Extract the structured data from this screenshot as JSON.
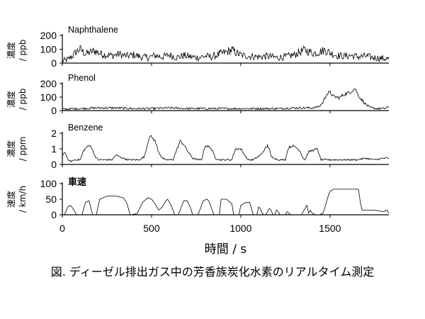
{
  "chart_data": {
    "type": "line",
    "caption": "図. ディーゼル排出ガス中の芳香族炭化水素のリアルタイム測定",
    "xlabel": "時間 / s",
    "xlim": [
      0,
      1830
    ],
    "xticks": [
      0,
      500,
      1000,
      1500
    ],
    "panels": [
      {
        "title": "Naphthalene",
        "ylabel_main": "濃度",
        "ylabel_unit": "/ ppb",
        "ylim": [
          0,
          200
        ],
        "yticks": [
          0,
          100,
          200
        ],
        "x": [
          0,
          30,
          60,
          80,
          100,
          130,
          150,
          180,
          210,
          240,
          280,
          320,
          360,
          400,
          440,
          480,
          520,
          560,
          600,
          640,
          680,
          720,
          760,
          800,
          840,
          880,
          920,
          950,
          980,
          1010,
          1050,
          1100,
          1150,
          1200,
          1250,
          1300,
          1340,
          1360,
          1380,
          1410,
          1440,
          1470,
          1500,
          1540,
          1580,
          1620,
          1660,
          1700,
          1740,
          1780,
          1830
        ],
        "y": [
          15,
          25,
          55,
          85,
          100,
          65,
          75,
          90,
          70,
          60,
          55,
          65,
          50,
          60,
          45,
          40,
          55,
          45,
          60,
          40,
          55,
          45,
          40,
          50,
          45,
          65,
          80,
          95,
          70,
          55,
          50,
          45,
          50,
          40,
          45,
          60,
          85,
          95,
          85,
          70,
          80,
          95,
          75,
          55,
          50,
          55,
          45,
          50,
          40,
          35,
          30
        ]
      },
      {
        "title": "Phenol",
        "ylabel_main": "濃度",
        "ylabel_unit": "/ ppb",
        "ylim": [
          0,
          200
        ],
        "yticks": [
          0,
          100,
          200
        ],
        "x": [
          0,
          100,
          200,
          300,
          400,
          500,
          600,
          700,
          800,
          900,
          1000,
          1100,
          1200,
          1300,
          1400,
          1440,
          1460,
          1480,
          1500,
          1520,
          1550,
          1580,
          1610,
          1640,
          1660,
          1690,
          1720,
          1760,
          1800,
          1830
        ],
        "y": [
          10,
          15,
          20,
          20,
          15,
          15,
          20,
          15,
          15,
          15,
          15,
          15,
          15,
          20,
          20,
          30,
          60,
          120,
          135,
          105,
          95,
          120,
          135,
          165,
          110,
          60,
          25,
          15,
          15,
          25
        ]
      },
      {
        "title": "Benzene",
        "ylabel_main": "濃度",
        "ylabel_unit": "/ ppm",
        "ylim": [
          0,
          2
        ],
        "yticks": [
          0,
          1,
          2
        ],
        "x": [
          0,
          15,
          30,
          50,
          70,
          100,
          120,
          140,
          160,
          170,
          185,
          200,
          240,
          280,
          300,
          340,
          370,
          400,
          430,
          460,
          475,
          490,
          505,
          520,
          540,
          560,
          580,
          620,
          640,
          660,
          680,
          700,
          730,
          760,
          780,
          800,
          830,
          860,
          880,
          900,
          950,
          970,
          1000,
          1040,
          1060,
          1070,
          1110,
          1150,
          1160,
          1170,
          1210,
          1250,
          1260,
          1270,
          1290,
          1310,
          1330,
          1350,
          1360,
          1380,
          1400,
          1430,
          1440,
          1450,
          1470,
          1500,
          1550,
          1600,
          1650,
          1700,
          1750,
          1800,
          1830
        ],
        "y": [
          0.6,
          0.8,
          0.3,
          0.2,
          0.3,
          0.3,
          0.9,
          1.15,
          1.2,
          0.9,
          0.5,
          0.3,
          0.3,
          0.3,
          0.6,
          0.4,
          0.3,
          0.3,
          0.3,
          0.5,
          1.2,
          1.85,
          1.7,
          1.5,
          0.8,
          0.4,
          0.3,
          0.3,
          0.9,
          1.5,
          1.3,
          0.9,
          0.4,
          0.3,
          0.3,
          1.2,
          1.1,
          0.4,
          0.3,
          0.3,
          0.3,
          1.0,
          1.0,
          0.3,
          0.3,
          0.3,
          0.6,
          1.2,
          1.0,
          0.5,
          0.3,
          0.3,
          0.8,
          1.1,
          1.2,
          1.1,
          0.9,
          0.4,
          0.3,
          0.8,
          0.9,
          1.0,
          0.6,
          0.3,
          0.3,
          0.3,
          0.3,
          0.3,
          0.3,
          0.4,
          0.3,
          0.4,
          0.4
        ]
      },
      {
        "title": "車速",
        "ylabel_main": "速度",
        "ylabel_unit": "/ km/h",
        "ylim": [
          0,
          100
        ],
        "yticks": [
          0,
          50,
          100
        ],
        "x": [
          0,
          10,
          20,
          30,
          45,
          60,
          80,
          90,
          100,
          110,
          130,
          150,
          160,
          170,
          190,
          210,
          250,
          300,
          340,
          360,
          380,
          390,
          420,
          450,
          480,
          500,
          520,
          540,
          560,
          580,
          590,
          610,
          630,
          650,
          680,
          700,
          720,
          730,
          760,
          790,
          810,
          820,
          850,
          880,
          890,
          920,
          950,
          960,
          990,
          1000,
          1030,
          1050,
          1060,
          1070,
          1090,
          1100,
          1110,
          1120,
          1130,
          1140,
          1160,
          1170,
          1180,
          1190,
          1200,
          1210,
          1220,
          1230,
          1240,
          1250,
          1260,
          1280,
          1290,
          1300,
          1320,
          1340,
          1360,
          1370,
          1380,
          1390,
          1400,
          1420,
          1440,
          1460,
          1470,
          1490,
          1500,
          1520,
          1550,
          1600,
          1640,
          1650,
          1660,
          1670,
          1680,
          1700,
          1750,
          1800,
          1820,
          1830
        ],
        "y": [
          0,
          0,
          10,
          25,
          30,
          20,
          0,
          0,
          0,
          0,
          40,
          45,
          20,
          0,
          0,
          50,
          60,
          60,
          55,
          40,
          0,
          0,
          5,
          40,
          55,
          50,
          35,
          15,
          25,
          45,
          50,
          30,
          0,
          0,
          45,
          45,
          20,
          0,
          0,
          45,
          50,
          45,
          0,
          0,
          50,
          50,
          35,
          0,
          0,
          30,
          40,
          40,
          20,
          0,
          0,
          25,
          20,
          5,
          0,
          0,
          20,
          15,
          0,
          0,
          15,
          10,
          0,
          0,
          0,
          0,
          10,
          0,
          0,
          0,
          0,
          0,
          20,
          30,
          5,
          15,
          5,
          0,
          0,
          5,
          20,
          60,
          75,
          82,
          82,
          82,
          82,
          83,
          80,
          40,
          15,
          15,
          15,
          10,
          15,
          5
        ]
      }
    ]
  }
}
